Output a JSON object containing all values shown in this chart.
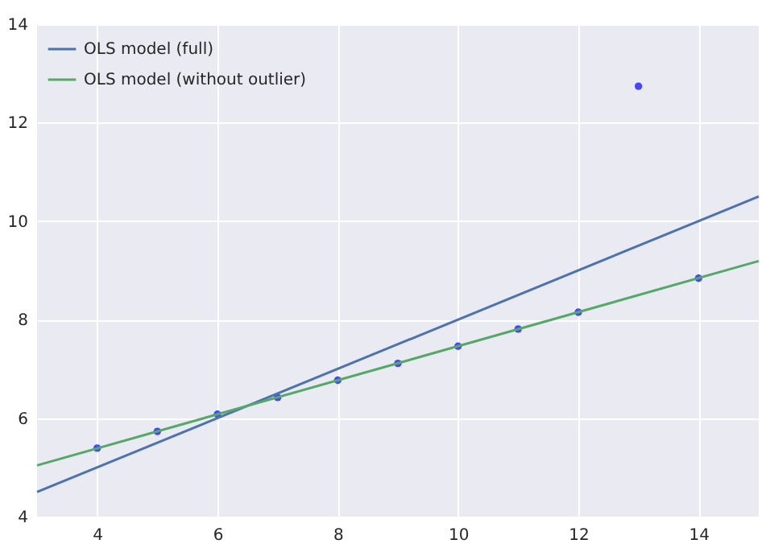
{
  "chart_data": {
    "type": "scatter",
    "xlim": [
      3,
      15
    ],
    "ylim": [
      4,
      14
    ],
    "xticks": [
      4,
      6,
      8,
      10,
      12,
      14
    ],
    "yticks": [
      4,
      6,
      8,
      10,
      12,
      14
    ],
    "grid": true,
    "legend": "top left",
    "marker": "circle",
    "series": [
      {
        "color": "#0000ff",
        "x": [
          4,
          5,
          6,
          7,
          8,
          9,
          10,
          11,
          12,
          13,
          14
        ],
        "values": [
          5.39,
          5.73,
          6.08,
          6.42,
          6.77,
          7.11,
          7.46,
          7.81,
          8.15,
          12.74,
          8.84
        ]
      },
      {
        "type": "line",
        "marker": "none",
        "name": "OLS model (full)",
        "color": "#4c72b0",
        "x": [
          3,
          15
        ],
        "values": [
          4.5,
          10.5
        ]
      },
      {
        "type": "line",
        "marker": "none",
        "name": "OLS model (without outlier)",
        "color": "#55a868",
        "x": [
          3,
          15
        ],
        "values": [
          5.04,
          9.19
        ]
      }
    ]
  }
}
